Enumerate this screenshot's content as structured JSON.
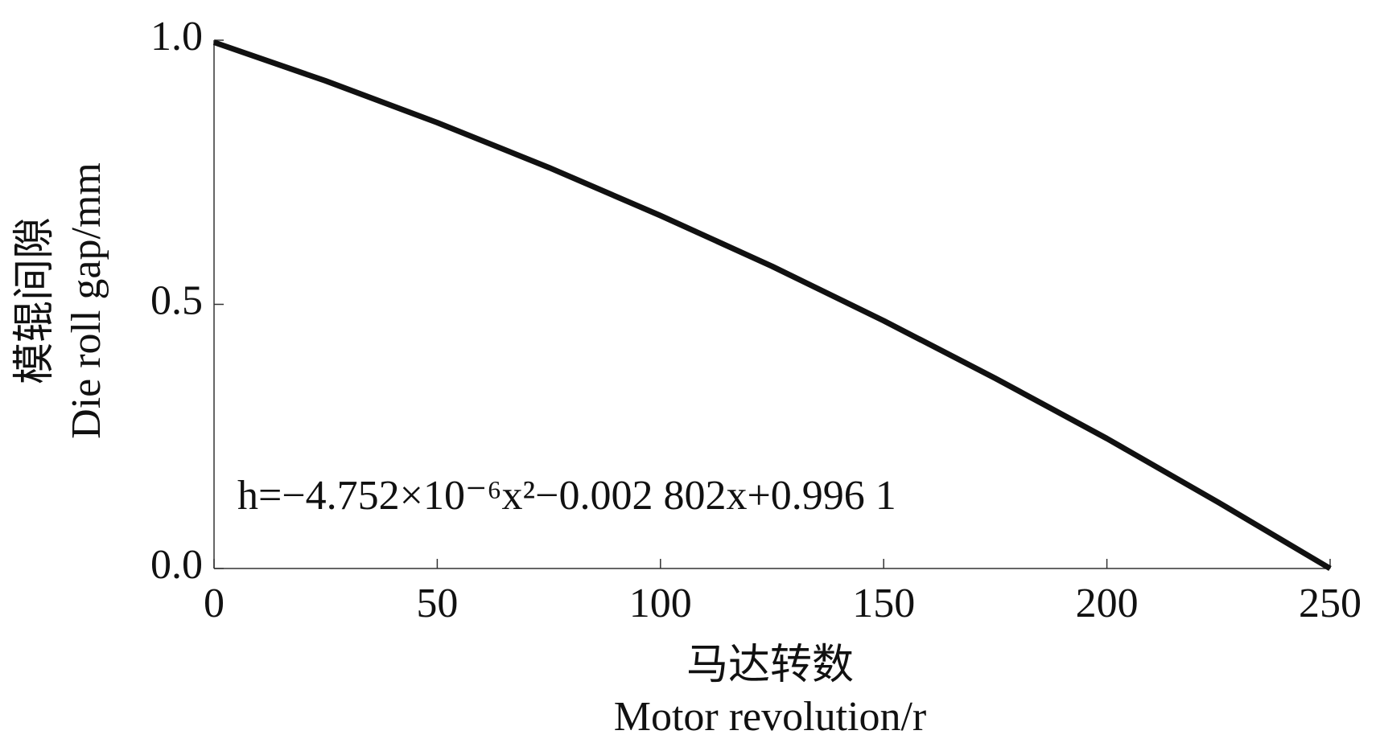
{
  "chart_data": {
    "type": "line",
    "x": [
      0,
      25,
      50,
      75,
      100,
      125,
      150,
      175,
      200,
      225,
      250
    ],
    "series": [
      {
        "color": "#111111",
        "values": [
          0.996,
          0.923,
          0.844,
          0.759,
          0.668,
          0.572,
          0.469,
          0.36,
          0.246,
          0.125,
          0.0
        ]
      }
    ],
    "xlim": [
      0,
      250
    ],
    "xticks": [
      0,
      50,
      100,
      150,
      200,
      250
    ],
    "ylim": [
      0,
      1
    ],
    "yticks": [
      {
        "value": 0,
        "label": "0.0"
      },
      0.5,
      {
        "value": 1,
        "label": "1.0"
      }
    ],
    "xlabel": [
      "马达转数",
      "Motor revolution/r"
    ],
    "ylabel": [
      "模辊间隙",
      "Die roll gap/mm"
    ],
    "annotation": "h=−4.752×10⁻⁶x²−0.002 802x+0.996 1",
    "grid": false
  }
}
